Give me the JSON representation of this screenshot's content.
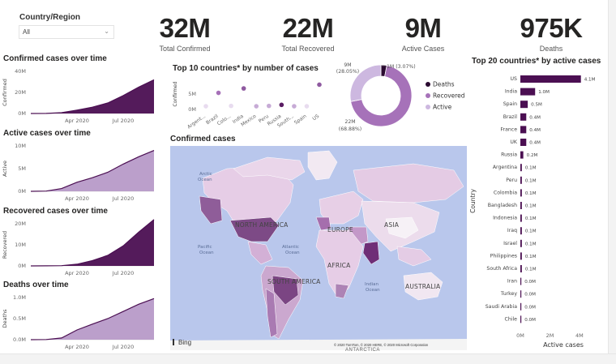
{
  "filter": {
    "title": "Country/Region",
    "value": "All"
  },
  "kpis": [
    {
      "value": "32M",
      "label": "Total Confirmed"
    },
    {
      "value": "22M",
      "label": "Total Recovered"
    },
    {
      "value": "9M",
      "label": "Active Cases"
    },
    {
      "value": "975K",
      "label": "Deaths"
    }
  ],
  "mini_charts": [
    {
      "title": "Confirmed cases over time",
      "ylabel": "Confirmed",
      "yticks": [
        "40M",
        "20M",
        "0M"
      ],
      "xticks": [
        "Apr 2020",
        "Jul 2020"
      ],
      "color": "#4b0f52",
      "fill": "#4b0f52"
    },
    {
      "title": "Active cases over time",
      "ylabel": "Active",
      "yticks": [
        "10M",
        "5M",
        "0M"
      ],
      "xticks": [
        "Apr 2020",
        "Jul 2020"
      ],
      "color": "#4b0f52",
      "fill": "#b79ac8"
    },
    {
      "title": "Recovered cases over time",
      "ylabel": "Recovered",
      "yticks": [
        "20M",
        "10M",
        "0M"
      ],
      "xticks": [
        "Apr 2020",
        "Jul 2020"
      ],
      "color": "#4b0f52",
      "fill": "#4b0f52"
    },
    {
      "title": "Deaths over time",
      "ylabel": "Deaths",
      "yticks": [
        "1.0M",
        "0.5M",
        "0.0M"
      ],
      "xticks": [
        "Apr 2020",
        "Jul 2020"
      ],
      "color": "#4b0f52",
      "fill": "#b79ac8"
    }
  ],
  "top10": {
    "title": "Top 10 countries* by number of cases",
    "ylabel": "Confirmed",
    "yticks": [
      "5M",
      "0M"
    ],
    "countries": [
      "Argent...",
      "Brazil",
      "Colo...",
      "India",
      "Mexico",
      "Peru",
      "Russia",
      "South...",
      "Spain",
      "US"
    ]
  },
  "donut": {
    "labels": [
      {
        "text": "9M",
        "pct": "(28.05%)"
      },
      {
        "text": "22M",
        "pct": "(68.88%)"
      },
      {
        "text": "1M (3.07%)"
      }
    ],
    "legend": [
      {
        "name": "Deaths",
        "color": "#2a0a30"
      },
      {
        "name": "Recovered",
        "color": "#a672b9"
      },
      {
        "name": "Active",
        "color": "#cdb8e0"
      }
    ]
  },
  "map": {
    "title": "Confirmed cases",
    "labels": [
      "NORTH AMERICA",
      "SOUTH AMERICA",
      "EUROPE",
      "ASIA",
      "AFRICA",
      "AUSTRALIA"
    ],
    "oceans": [
      "Arctic",
      "Ocean",
      "Pacific",
      "Ocean",
      "Atlantic",
      "Ocean",
      "Indian",
      "Ocean"
    ],
    "brand": "Bing",
    "credit": "© 2020 TomTom, © 2020 HERE, © 2020 Microsoft Corporation",
    "antarctica": "ANTARCTICA"
  },
  "top20": {
    "title": "Top 20 countries* by active cases",
    "ylabel": "Country",
    "xlabel": "Active cases",
    "xticks": [
      "0M",
      "2M",
      "4M"
    ]
  },
  "chart_data": [
    {
      "type": "area",
      "title": "Confirmed cases over time",
      "ylabel": "Confirmed",
      "ylim": [
        0,
        40
      ],
      "unit": "M",
      "x": [
        "2020-01",
        "2020-02",
        "2020-03",
        "2020-04",
        "2020-05",
        "2020-06",
        "2020-07",
        "2020-08",
        "2020-09"
      ],
      "values": [
        0,
        0.1,
        0.8,
        3.2,
        6.0,
        10.0,
        17.0,
        25.0,
        32.0
      ]
    },
    {
      "type": "area",
      "title": "Active cases over time",
      "ylabel": "Active",
      "ylim": [
        0,
        10
      ],
      "unit": "M",
      "x": [
        "2020-01",
        "2020-02",
        "2020-03",
        "2020-04",
        "2020-05",
        "2020-06",
        "2020-07",
        "2020-08",
        "2020-09"
      ],
      "values": [
        0,
        0.05,
        0.6,
        2.0,
        3.0,
        4.2,
        6.0,
        7.6,
        9.0
      ]
    },
    {
      "type": "area",
      "title": "Recovered cases over time",
      "ylabel": "Recovered",
      "ylim": [
        0,
        20
      ],
      "unit": "M",
      "x": [
        "2020-01",
        "2020-02",
        "2020-03",
        "2020-04",
        "2020-05",
        "2020-06",
        "2020-07",
        "2020-08",
        "2020-09"
      ],
      "values": [
        0,
        0.02,
        0.1,
        0.8,
        2.5,
        5.0,
        9.5,
        16.0,
        22.0
      ]
    },
    {
      "type": "area",
      "title": "Deaths over time",
      "ylabel": "Deaths",
      "ylim": [
        0,
        1.0
      ],
      "unit": "M",
      "x": [
        "2020-01",
        "2020-02",
        "2020-03",
        "2020-04",
        "2020-05",
        "2020-06",
        "2020-07",
        "2020-08",
        "2020-09"
      ],
      "values": [
        0,
        0.003,
        0.04,
        0.23,
        0.37,
        0.5,
        0.67,
        0.84,
        0.975
      ]
    },
    {
      "type": "scatter",
      "title": "Top 10 countries* by number of cases",
      "ylabel": "Confirmed",
      "ylim": [
        0,
        9
      ],
      "unit": "M",
      "categories": [
        "Argent...",
        "Brazil",
        "Colo...",
        "India",
        "Mexico",
        "Peru",
        "Russia",
        "South...",
        "Spain",
        "US"
      ],
      "values": [
        0.7,
        4.6,
        0.8,
        5.9,
        0.7,
        0.8,
        1.1,
        0.7,
        0.7,
        7.0
      ]
    },
    {
      "type": "pie",
      "categories": [
        "Deaths",
        "Recovered",
        "Active"
      ],
      "values": [
        3.07,
        68.88,
        28.05
      ],
      "unit": "%"
    },
    {
      "type": "bar",
      "orientation": "horizontal",
      "title": "Top 20 countries* by active cases",
      "xlabel": "Active cases",
      "ylabel": "Country",
      "xlim": [
        0,
        4.5
      ],
      "unit": "M",
      "categories": [
        "US",
        "India",
        "Spain",
        "Brazil",
        "France",
        "UK",
        "Russia",
        "Argentina",
        "Peru",
        "Colombia",
        "Bangladesh",
        "Indonesia",
        "Iraq",
        "Israel",
        "Philippines",
        "South Africa",
        "Iran",
        "Turkey",
        "Saudi Arabia",
        "Chile"
      ],
      "values": [
        4.1,
        1.0,
        0.5,
        0.4,
        0.4,
        0.4,
        0.2,
        0.1,
        0.1,
        0.1,
        0.1,
        0.1,
        0.1,
        0.1,
        0.1,
        0.1,
        0.05,
        0.05,
        0.03,
        0.02
      ],
      "labels": [
        "4.1M",
        "1.0M",
        "0.5M",
        "0.4M",
        "0.4M",
        "0.4M",
        "0.2M",
        "0.1M",
        "0.1M",
        "0.1M",
        "0.1M",
        "0.1M",
        "0.1M",
        "0.1M",
        "0.1M",
        "0.1M",
        "0.0M",
        "0.0M",
        "0.0M",
        "0.0M"
      ]
    }
  ]
}
